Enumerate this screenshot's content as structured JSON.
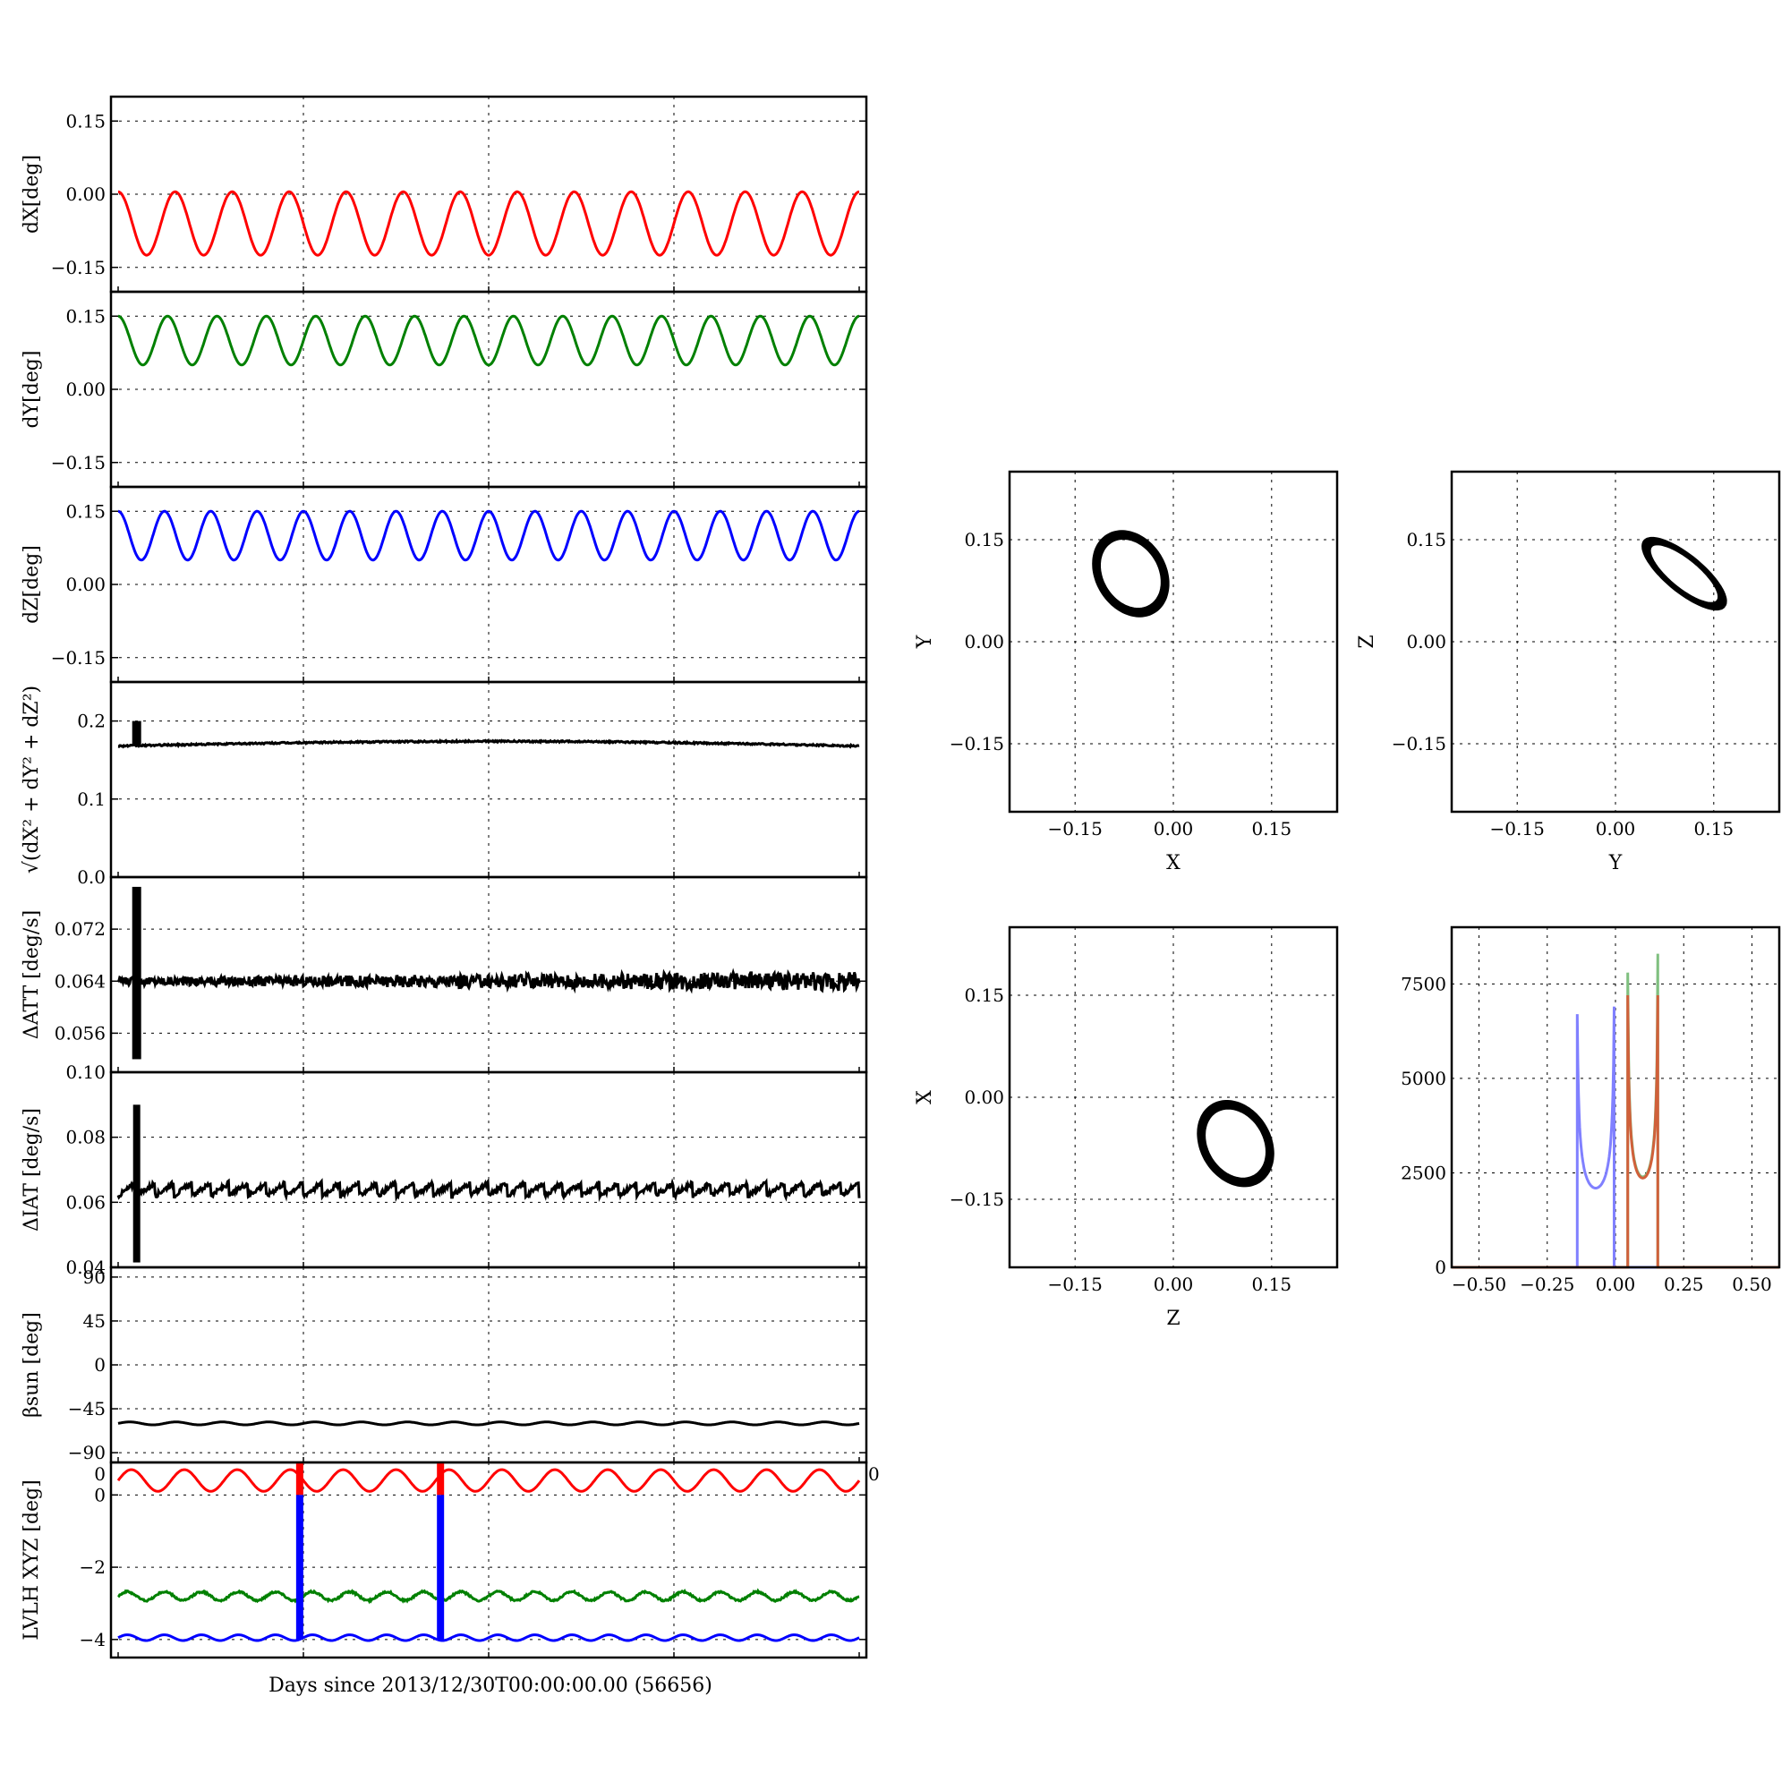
{
  "colors": {
    "x": "#ff0000",
    "y": "#008000",
    "z": "#0000ff",
    "k": "#000000",
    "hist_x": "#8080ff",
    "hist_y": "#80c080",
    "hist_z": "#d0603a"
  },
  "time_axis": {
    "xlabel": "Days since 2013/12/30T00:00:00.00 (56656)",
    "xlim": [
      0,
      1
    ],
    "grid_x": [
      0.25,
      0.5,
      0.75
    ]
  },
  "panels": [
    {
      "key": "dx",
      "ylabel": "dX[deg]",
      "ylim": [
        -0.2,
        0.2
      ],
      "yticks": [
        0.15,
        0.0,
        -0.15
      ],
      "yticklabels": [
        "0.15",
        "0.00",
        "−0.15"
      ],
      "color": "x",
      "series": {
        "kind": "sine",
        "base": -0.06,
        "amp": 0.065,
        "cycles": 13,
        "phase": 1.57
      }
    },
    {
      "key": "dy",
      "ylabel": "dY[deg]",
      "ylim": [
        -0.2,
        0.2
      ],
      "yticks": [
        0.15,
        0.0,
        -0.15
      ],
      "yticklabels": [
        "0.15",
        "0.00",
        "−0.15"
      ],
      "color": "y",
      "series": {
        "kind": "sine",
        "base": 0.1,
        "amp": 0.05,
        "cycles": 15,
        "phase": 1.57
      }
    },
    {
      "key": "dz",
      "ylabel": "dZ[deg]",
      "ylim": [
        -0.2,
        0.2
      ],
      "yticks": [
        0.15,
        0.0,
        -0.15
      ],
      "yticklabels": [
        "0.15",
        "0.00",
        "−0.15"
      ],
      "color": "z",
      "series": {
        "kind": "sine",
        "base": 0.1,
        "amp": 0.05,
        "cycles": 16,
        "phase": 1.57
      }
    },
    {
      "key": "norm",
      "ylabel": "√(dX² + dY² + dZ²)",
      "ylim": [
        0.0,
        0.25
      ],
      "yticks": [
        0.2,
        0.1,
        0.0
      ],
      "yticklabels": [
        "0.2",
        "0.1",
        "0.0"
      ],
      "color": "k",
      "series": {
        "kind": "norm",
        "base": 0.168,
        "bump": 0.006,
        "spike_x": 0.025,
        "spike_y": 0.2
      }
    },
    {
      "key": "datt",
      "ylabel": "ΔATT [deg/s]",
      "ylim": [
        0.05,
        0.08
      ],
      "yticks": [
        0.072,
        0.064,
        0.056
      ],
      "yticklabels": [
        "0.072",
        "0.064",
        "0.056"
      ],
      "color": "k",
      "series": {
        "kind": "noise",
        "base": 0.064,
        "noise": 0.0012,
        "spike_x": 0.025,
        "spike_lo": 0.052,
        "spike_hi": 0.0785
      }
    },
    {
      "key": "diat",
      "ylabel": "ΔIAT [deg/s]",
      "ylim": [
        0.04,
        0.1
      ],
      "yticks": [
        0.1,
        0.08,
        0.06,
        0.04
      ],
      "yticklabels": [
        "0.10",
        "0.08",
        "0.06",
        "0.04"
      ],
      "color": "k",
      "series": {
        "kind": "saw",
        "base": 0.064,
        "amp": 0.004,
        "cycles": 40,
        "spike_x": 0.025,
        "spike_lo": 0.0415,
        "spike_hi": 0.09
      }
    },
    {
      "key": "beta",
      "ylabel": "βsun [deg]",
      "ylim": [
        -100,
        100
      ],
      "yticks": [
        90,
        45,
        0,
        -45,
        -90
      ],
      "yticklabels": [
        "90",
        "45",
        "0",
        "−45",
        "−90"
      ],
      "color": "k",
      "series": {
        "kind": "sine",
        "base": -60,
        "amp": 1.5,
        "cycles": 16,
        "phase": 0
      }
    },
    {
      "key": "lvlh",
      "ylabel": "LVLH XYZ [deg]",
      "ylim": [
        -4.5,
        0.9
      ],
      "yticks": [
        0,
        -2,
        -4
      ],
      "yticklabels": [
        "0",
        "−2",
        "−4"
      ],
      "color": "k",
      "top_left_label": "0",
      "top_right_label": "0",
      "series": {
        "kind": "lvlh",
        "x": {
          "base": 0.4,
          "amp": 0.3,
          "cycles": 14
        },
        "y": {
          "base": -2.8,
          "amp": 0.12,
          "cycles": 20
        },
        "z": {
          "base": -3.95,
          "amp": 0.08,
          "cycles": 20
        },
        "jumps": [
          0.245,
          0.435
        ]
      }
    }
  ],
  "scatter": [
    {
      "key": "xy",
      "xlabel": "X",
      "ylabel": "Y",
      "xlim": [
        -0.25,
        0.25
      ],
      "ylim": [
        -0.25,
        0.25
      ],
      "ticks": [
        -0.15,
        0.0,
        0.15
      ],
      "ticklabels": [
        "−0.15",
        "0.00",
        "0.15"
      ],
      "ellipse": {
        "cx": -0.065,
        "cy": 0.1,
        "rx": 0.048,
        "ry": 0.062,
        "tilt_deg": 35
      }
    },
    {
      "key": "yz",
      "xlabel": "Y",
      "ylabel": "Z",
      "xlim": [
        -0.25,
        0.25
      ],
      "ylim": [
        -0.25,
        0.25
      ],
      "ticks": [
        -0.15,
        0.0,
        0.15
      ],
      "ticklabels": [
        "−0.15",
        "0.00",
        "0.15"
      ],
      "ellipse": {
        "cx": 0.105,
        "cy": 0.1,
        "rx": 0.072,
        "ry": 0.025,
        "tilt_deg": -38
      }
    },
    {
      "key": "zx",
      "xlabel": "Z",
      "ylabel": "X",
      "xlim": [
        -0.25,
        0.25
      ],
      "ylim": [
        -0.25,
        0.25
      ],
      "ticks": [
        -0.15,
        0.0,
        0.15
      ],
      "ticklabels": [
        "−0.15",
        "0.00",
        "0.15"
      ],
      "ellipse": {
        "cx": 0.095,
        "cy": -0.068,
        "rx": 0.048,
        "ry": 0.062,
        "tilt_deg": 35
      }
    }
  ],
  "histogram": {
    "xlim": [
      -0.6,
      0.6
    ],
    "ylim": [
      0,
      9000
    ],
    "xticks": [
      -0.5,
      -0.25,
      0.0,
      0.25,
      0.5
    ],
    "xticklabels": [
      "−0.50",
      "−0.25",
      "0.00",
      "0.25",
      "0.50"
    ],
    "yticks": [
      0,
      2500,
      5000,
      7500
    ],
    "yticklabels": [
      "0",
      "2500",
      "5000",
      "7500"
    ],
    "series": [
      {
        "color": "hist_x",
        "lo": -0.14,
        "hi": -0.005,
        "edge_lo": 6700,
        "edge_hi": 6900,
        "mid": 2200
      },
      {
        "color": "hist_y",
        "lo": 0.045,
        "hi": 0.155,
        "edge_lo": 7800,
        "edge_hi": 8300,
        "mid": 2500
      },
      {
        "color": "hist_z",
        "lo": 0.045,
        "hi": 0.155,
        "edge_lo": 7200,
        "edge_hi": 7200,
        "mid": 2500
      }
    ]
  }
}
